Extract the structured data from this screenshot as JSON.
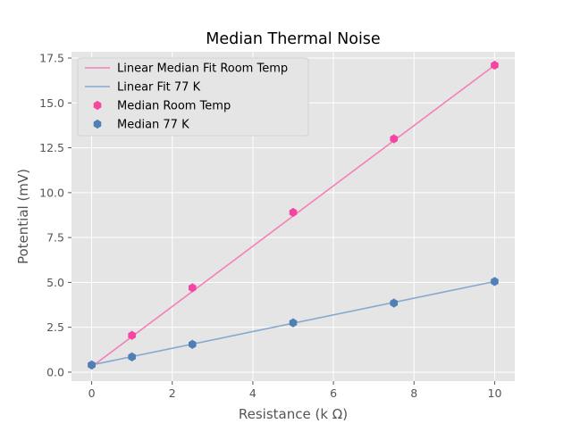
{
  "chart_data": {
    "type": "line",
    "title": "Median Thermal Noise",
    "xlabel": "Resistance (k Ω)",
    "ylabel": "Potential (mV)",
    "xlim": [
      -0.5,
      10.5
    ],
    "ylim": [
      -0.5,
      17.85
    ],
    "xticks": [
      0,
      2,
      4,
      6,
      8,
      10
    ],
    "xtick_labels": [
      "0",
      "2",
      "4",
      "6",
      "8",
      "10"
    ],
    "yticks": [
      0.0,
      2.5,
      5.0,
      7.5,
      10.0,
      12.5,
      15.0,
      17.5
    ],
    "ytick_labels": [
      "0.0",
      "2.5",
      "5.0",
      "7.5",
      "10.0",
      "12.5",
      "15.0",
      "17.5"
    ],
    "grid": true,
    "legend_position": "upper-left",
    "fit_lines": [
      {
        "name": "Linear Median Fit Room Temp",
        "color": "#f47fb9",
        "x": [
          0,
          10
        ],
        "y": [
          0.3,
          17.1
        ]
      },
      {
        "name": "Linear Fit 77 K",
        "color": "#86a8cf",
        "x": [
          0,
          10
        ],
        "y": [
          0.4,
          5.05
        ]
      }
    ],
    "series": [
      {
        "name": "Median Room Temp",
        "color": "#f545a3",
        "marker": "hexagon",
        "x": [
          0,
          1,
          2.5,
          5,
          7.5,
          10
        ],
        "y": [
          0.4,
          2.05,
          4.7,
          8.9,
          13.0,
          17.1
        ]
      },
      {
        "name": "Median 77 K",
        "color": "#4e7fb5",
        "marker": "hexagon",
        "x": [
          0,
          1,
          2.5,
          5,
          7.5,
          10
        ],
        "y": [
          0.4,
          0.85,
          1.55,
          2.75,
          3.85,
          5.05
        ]
      }
    ]
  }
}
